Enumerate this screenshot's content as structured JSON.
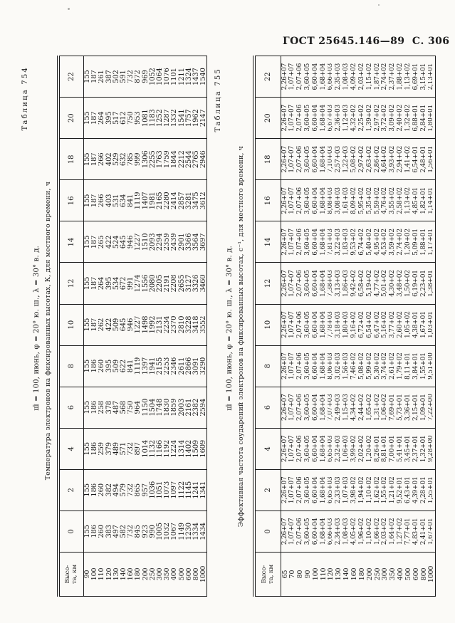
{
  "page_header": "ГОСТ 25645.146—89  С. 306",
  "ink_color": "#1c1c1c",
  "paper_color": "#fbfaf7",
  "tables": [
    {
      "label": "Таблица 754",
      "title": "ш̄ = 100, июнь, φ = 20° ю. ш., λ = 30° в. д.",
      "subtitle": "Температура электронов на фиксированных высотах, К, для местного времени, ч",
      "corner_header": "Высо-\nта, км",
      "time_columns": [
        "0",
        "2",
        "4",
        "6",
        "8",
        "10",
        "12",
        "14",
        "16",
        "18",
        "20",
        "22"
      ],
      "rows": [
        [
          "90",
          "155",
          "155",
          "155",
          "155",
          "155",
          "155",
          "155",
          "155",
          "155",
          "155",
          "155",
          "155"
        ],
        [
          "100",
          "186",
          "186",
          "186",
          "186",
          "186",
          "187",
          "187",
          "187",
          "187",
          "187",
          "187",
          "187"
        ],
        [
          "110",
          "260",
          "260",
          "259",
          "258",
          "260",
          "262",
          "264",
          "265",
          "266",
          "266",
          "264",
          "261"
        ],
        [
          "120",
          "383",
          "382",
          "379",
          "378",
          "395",
          "422",
          "395",
          "422",
          "403",
          "402",
          "395",
          "387"
        ],
        [
          "130",
          "497",
          "494",
          "489",
          "487",
          "509",
          "509",
          "534",
          "524",
          "531",
          "529",
          "517",
          "502"
        ],
        [
          "140",
          "582",
          "579",
          "571",
          "568",
          "622",
          "645",
          "672",
          "645",
          "634",
          "632",
          "612",
          "591"
        ],
        [
          "160",
          "732",
          "732",
          "732",
          "750",
          "841",
          "946",
          "991",
          "946",
          "841",
          "785",
          "750",
          "732"
        ],
        [
          "180",
          "845",
          "865",
          "897",
          "964",
          "1119",
          "1227",
          "1274",
          "1227",
          "1119",
          "999",
          "953",
          "872"
        ],
        [
          "200",
          "923",
          "957",
          "1014",
          "1150",
          "1397",
          "1498",
          "1556",
          "1510",
          "1407",
          "1306",
          "1081",
          "969"
        ],
        [
          "250",
          "990",
          "1036",
          "1132",
          "1504",
          "1941",
          "1992",
          "2080",
          "2093",
          "1981",
          "2255",
          "1183",
          "1052"
        ],
        [
          "300",
          "1005",
          "1051",
          "1166",
          "1748",
          "2155",
          "2131",
          "2205",
          "2294",
          "2165",
          "1763",
          "1252",
          "1064"
        ],
        [
          "350",
          "1032",
          "1073",
          "1192",
          "1830",
          "2253",
          "2234",
          "2191",
          "2359",
          "2280",
          "1759",
          "1287",
          "1076"
        ],
        [
          "400",
          "1067",
          "1097",
          "1224",
          "1859",
          "2346",
          "2370",
          "2208",
          "2439",
          "2414",
          "1844",
          "1332",
          "1101"
        ],
        [
          "500",
          "1149",
          "1122",
          "1314",
          "2003",
          "2611",
          "2810",
          "2655",
          "2901",
          "2857",
          "2212",
          "1541",
          "1211"
        ],
        [
          "600",
          "1230",
          "1145",
          "1402",
          "2161",
          "2866",
          "3228",
          "3127",
          "3366",
          "3281",
          "2544",
          "1757",
          "1324"
        ],
        [
          "800",
          "1334",
          "1241",
          "1509",
          "2382",
          "3091",
          "3418",
          "3326",
          "3564",
          "3475",
          "2765",
          "1962",
          "1437"
        ],
        [
          "1000",
          "1434",
          "1341",
          "1609",
          "2594",
          "3290",
          "3552",
          "3460",
          "3697",
          "3612",
          "2946",
          "2147",
          "1540"
        ]
      ]
    },
    {
      "label": "Таблица 755",
      "title": "ш̄ = 100, июнь, φ = 20° ю. ш., λ = 30° в. д.",
      "subtitle": "Эффективная частота соударений электронов на фиксированных высотах, с⁻¹, для местного времени, ч",
      "corner_header": "Высо-\nта, км",
      "time_columns": [
        "0",
        "2",
        "4",
        "6",
        "8",
        "10",
        "12",
        "14",
        "16",
        "18",
        "20",
        "22"
      ],
      "rows": [
        [
          "65",
          "2,26+07",
          "2,26+07",
          "2,26+07",
          "2,26+07",
          "2,26+07",
          "2,26+07",
          "2,26+07",
          "2,26+07",
          "2,26+07",
          "2,26+07",
          "2,26+07",
          "2,26+07"
        ],
        [
          "70",
          "1,07+07",
          "1,07+07",
          "1,07+07",
          "1,07+07",
          "1,07+07",
          "1,07+07",
          "1,07+07",
          "1,07+07",
          "1,07+07",
          "1,07+07",
          "1,07+07",
          "1,07+07"
        ],
        [
          "80",
          "2,07+06",
          "2,07+06",
          "2,07+06",
          "2,07+06",
          "2,07+06",
          "2,07+06",
          "2,07+06",
          "2,07+06",
          "2,07+06",
          "2,07+06",
          "2,07+06",
          "2,07+06"
        ],
        [
          "90",
          "3,60+05",
          "3,60+05",
          "3,60+05",
          "3,60+05",
          "3,60+05",
          "3,60+05",
          "3,60+05",
          "3,60+05",
          "3,60+05",
          "3,60+05",
          "3,60+05",
          "3,60+05"
        ],
        [
          "100",
          "6,60+04",
          "6,60+04",
          "6,60+04",
          "6,60+04",
          "6,60+04",
          "6,60+04",
          "6,60+04",
          "6,60+04",
          "6,60+04",
          "6,60+04",
          "6,60+04",
          "6,60+04"
        ],
        [
          "110",
          "1,68+04",
          "1,68+04",
          "1,68+04",
          "1,68+04",
          "1,68+04",
          "1,68+04",
          "1,68+04",
          "1,68+04",
          "1,68+04",
          "1,68+04",
          "1,68+04",
          "1,68+04"
        ],
        [
          "120",
          "6,66+03",
          "6,65+03",
          "6,65+03",
          "7,07+03",
          "8,06+03",
          "7,78+03",
          "7,38+03",
          "7,81+03",
          "8,08+03",
          "7,10+03",
          "6,67+03",
          "6,66+03"
        ],
        [
          "130",
          "2,34+03",
          "2,33+03",
          "2,32+03",
          "2,49+03",
          "3,02+03",
          "3,18+03",
          "3,13+03",
          "3,22+03",
          "3,08+03",
          "2,57+03",
          "2,36+03",
          "2,35+03"
        ],
        [
          "140",
          "1,08+03",
          "1,07+03",
          "1,06+03",
          "1,15+03",
          "1,56+03",
          "1,80+03",
          "1,86+03",
          "1,83+03",
          "1,61+03",
          "1,22+03",
          "1,12+03",
          "1,08+03"
        ],
        [
          "160",
          "4,05+02",
          "3,98+02",
          "3,99+02",
          "4,34+02",
          "7,46+02",
          "9,16+02",
          "9,42+02",
          "9,53+02",
          "8,09+02",
          "5,08+02",
          "4,32+02",
          "4,09+02"
        ],
        [
          "180",
          "1,96+02",
          "1,94+02",
          "2,02+02",
          "2,44+02",
          "5,08+02",
          "6,72+02",
          "6,58+02",
          "6,74+02",
          "5,95+02",
          "2,97+02",
          "2,25+02",
          "2,03+02"
        ],
        [
          "200",
          "1,10+02",
          "1,10+02",
          "1,20+02",
          "1,65+02",
          "5,99+02",
          "6,54+02",
          "5,19+02",
          "5,40+02",
          "5,35+02",
          "2,63+02",
          "1,39+02",
          "1,15+02"
        ],
        [
          "250",
          "1,66+02",
          "1,62+02",
          "8,26+01",
          "1,31+02",
          "5,30+02",
          "6,47+02",
          "4,77+02",
          "4,95+02",
          "5,59+02",
          "2,86+02",
          "2,97+02",
          "1,87+02"
        ],
        [
          "300",
          "2,03+02",
          "1,55+02",
          "8,81+01",
          "1,06+02",
          "3,74+02",
          "5,16+02",
          "5,01+02",
          "4,53+02",
          "4,76+02",
          "4,64+02",
          "3,72+02",
          "2,74+02"
        ],
        [
          "350",
          "1,64+02",
          "1,21+02",
          "7,00+01",
          "7,69+01",
          "2,61+02",
          "3,77+02",
          "4,30+02",
          "3,59+02",
          "3,55+02",
          "3,93+02",
          "3,09+02",
          "2,37+02"
        ],
        [
          "400",
          "1,27+02",
          "9,52+01",
          "5,41+01",
          "5,73+01",
          "1,79+02",
          "2,60+02",
          "3,48+02",
          "2,74+02",
          "2,58+02",
          "2,94+02",
          "2,40+02",
          "1,88+02"
        ],
        [
          "500",
          "7,77+01",
          "6,43+01",
          "3,45+01",
          "3,36+01",
          "8,11+01",
          "1,05+02",
          "1,50+02",
          "1,20+02",
          "1,13+02",
          "1,41+02",
          "1,32+02",
          "1,13+02"
        ],
        [
          "600",
          "4,83+01",
          "4,39+01",
          "2,37+01",
          "2,15+01",
          "3,84+01",
          "4,38+01",
          "6,19+01",
          "5,09+01",
          "4,85+01",
          "6,54+01",
          "6,88+01",
          "6,69+01"
        ],
        [
          "800",
          "2,41+01",
          "2,28+01",
          "1,32+01",
          "1,09+01",
          "1,55+01",
          "1,67+01",
          "2,23+01",
          "1,88+01",
          "1,82+01",
          "2,48+01",
          "2,84+01",
          "3,15+01"
        ],
        [
          "1000",
          "1,67+01",
          "1,55+01",
          "9,28+00",
          "7,22+00",
          "9,51+00",
          "1,03+01",
          "1,38+01",
          "1,17+01",
          "1,14+01",
          "1,56+01",
          "1,80+01",
          "2,13+01"
        ]
      ]
    }
  ]
}
